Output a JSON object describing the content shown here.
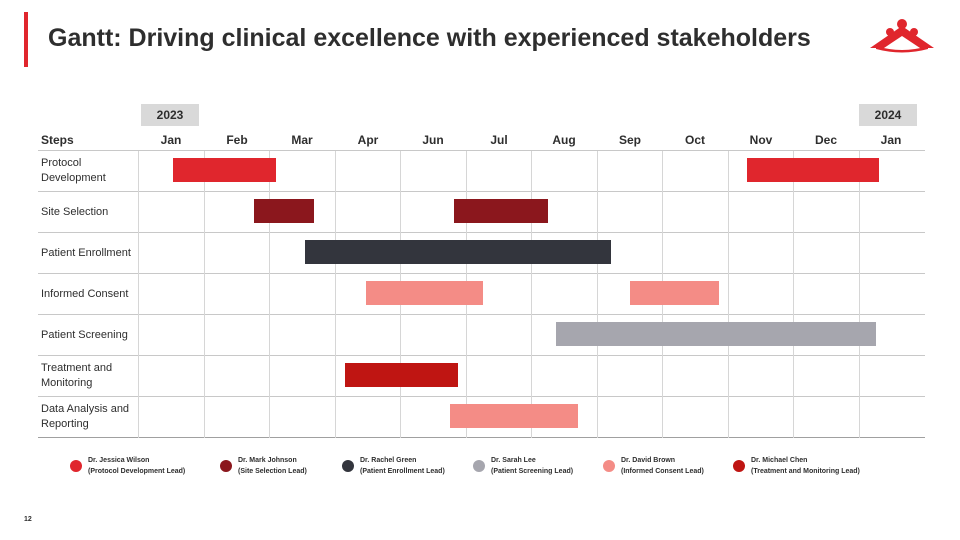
{
  "title": "Gantt: Driving clinical excellence with experienced stakeholders",
  "years": [
    "2023",
    "2024"
  ],
  "steps_header": "Steps",
  "months": [
    "Jan",
    "Feb",
    "Mar",
    "Apr",
    "Jun",
    "Jul",
    "Aug",
    "Sep",
    "Oct",
    "Nov",
    "Dec",
    "Jan"
  ],
  "colors": {
    "accent": "#e0262d",
    "jessica": "#e0262d",
    "mark": "#8b171d",
    "rachel": "#33353d",
    "sarah": "#a6a6ae",
    "david": "#f48c86",
    "michael": "#bf1512"
  },
  "steps": [
    {
      "label": "Protocol Development"
    },
    {
      "label": "Site Selection"
    },
    {
      "label": "Patient Enrollment"
    },
    {
      "label": "Informed Consent"
    },
    {
      "label": "Patient Screening"
    },
    {
      "label": "Treatment and Monitoring"
    },
    {
      "label": "Data Analysis and Reporting"
    }
  ],
  "legend": [
    {
      "name": "Dr. Jessica Wilson",
      "role": "(Protocol Development Lead)",
      "color": "#e0262d"
    },
    {
      "name": "Dr. Mark Johnson",
      "role": "(Site Selection Lead)",
      "color": "#8b171d"
    },
    {
      "name": "Dr. Rachel Green",
      "role": "(Patient Enrollment Lead)",
      "color": "#33353d"
    },
    {
      "name": "Dr. Sarah Lee",
      "role": "(Patient Screening Lead)",
      "color": "#a6a6ae"
    },
    {
      "name": "Dr. David Brown",
      "role": "(Informed Consent Lead)",
      "color": "#f48c86"
    },
    {
      "name": "Dr. Michael Chen",
      "role": "(Treatment and Monitoring Lead)",
      "color": "#bf1512"
    }
  ],
  "page_number": "12"
}
